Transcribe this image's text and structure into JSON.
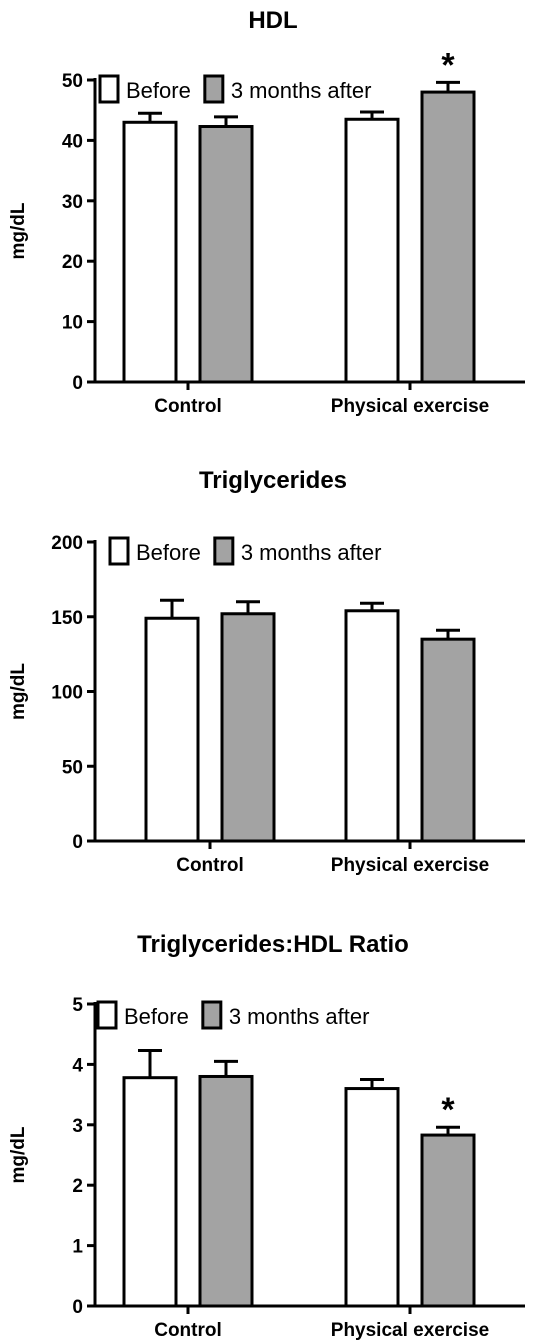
{
  "colors": {
    "before": "#ffffff",
    "after": "#a3a3a3",
    "stroke": "#000000"
  },
  "chart_data": [
    {
      "type": "bar",
      "title": "HDL",
      "ylabel": "mg/dL",
      "xlabel": "",
      "ylim": [
        0,
        50
      ],
      "yticks": [
        "0",
        "10",
        "20",
        "30",
        "40",
        "50"
      ],
      "categories": [
        "Control",
        "Physical exercise"
      ],
      "legend": "top-left",
      "series": [
        {
          "name": "Before",
          "values": [
            43,
            43.5
          ],
          "errors": [
            1.5,
            1.2
          ]
        },
        {
          "name": "3 months after",
          "values": [
            42.3,
            48
          ],
          "errors": [
            1.6,
            1.6
          ]
        }
      ],
      "annotations": [
        {
          "text": "*",
          "series": 1,
          "category": 1
        }
      ]
    },
    {
      "type": "bar",
      "title": "Triglycerides",
      "ylabel": "mg/dL",
      "xlabel": "",
      "ylim": [
        0,
        200
      ],
      "yticks": [
        "0",
        "50",
        "100",
        "150",
        "200"
      ],
      "categories": [
        "Control",
        "Physical exercise"
      ],
      "legend": "top-left",
      "series": [
        {
          "name": "Before",
          "values": [
            149,
            154
          ],
          "errors": [
            12,
            5
          ]
        },
        {
          "name": "3 months after",
          "values": [
            152,
            135
          ],
          "errors": [
            8,
            6
          ]
        }
      ],
      "annotations": []
    },
    {
      "type": "bar",
      "title": "Triglycerides:HDL Ratio",
      "ylabel": "mg/dL",
      "xlabel": "",
      "ylim": [
        0,
        5
      ],
      "yticks": [
        "0",
        "1",
        "2",
        "3",
        "4",
        "5"
      ],
      "categories": [
        "Control",
        "Physical exercise"
      ],
      "legend": "top-left",
      "series": [
        {
          "name": "Before",
          "values": [
            3.78,
            3.6
          ],
          "errors": [
            0.45,
            0.15
          ]
        },
        {
          "name": "3 months after",
          "values": [
            3.8,
            2.83
          ],
          "errors": [
            0.25,
            0.13
          ]
        }
      ],
      "annotations": [
        {
          "text": "*",
          "series": 1,
          "category": 1
        }
      ]
    }
  ]
}
